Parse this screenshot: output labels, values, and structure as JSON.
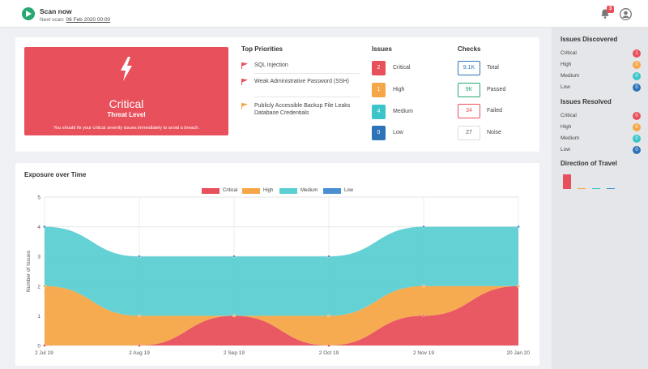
{
  "topbar": {
    "scan_title": "Scan now",
    "next_scan_label": "Next scan:",
    "next_scan_date": "06 Feb 2020 00:00",
    "notification_count": "3"
  },
  "threat": {
    "level": "Critical",
    "subtitle": "Threat Level",
    "message": "You should fix your critical severity issues immediately to avoid a breach.",
    "color": "#e8505b"
  },
  "priorities": {
    "title": "Top Priorities",
    "items": [
      {
        "text": "SQL Injection",
        "color": "#e8505b"
      },
      {
        "text": "Weak Administrative Password (SSH)",
        "color": "#e8505b"
      },
      {
        "text": "Publicly Accessible Backup File Leaks Database Credentials",
        "color": "#f5a748"
      }
    ]
  },
  "issues": {
    "title": "Issues",
    "items": [
      {
        "count": "2",
        "label": "Critical",
        "color": "#e8505b"
      },
      {
        "count": "1",
        "label": "High",
        "color": "#f5a748"
      },
      {
        "count": "4",
        "label": "Medium",
        "color": "#3cc5c9"
      },
      {
        "count": "0",
        "label": "Low",
        "color": "#2d73b8"
      }
    ]
  },
  "checks": {
    "title": "Checks",
    "items": [
      {
        "value": "9.1K",
        "label": "Total",
        "color": "#2d73b8"
      },
      {
        "value": "9K",
        "label": "Passed",
        "color": "#27a872"
      },
      {
        "value": "34",
        "label": "Failed",
        "color": "#e8505b"
      },
      {
        "value": "27",
        "label": "Noise",
        "color": "#555555"
      }
    ]
  },
  "chart_data": {
    "type": "area",
    "title": "Exposure over Time",
    "xlabel": "",
    "ylabel": "Number of Issues",
    "x": [
      "2 Jul 19",
      "2 Aug 19",
      "2 Sep 19",
      "2 Oct 19",
      "2 Nov 19",
      "20 Jan 20"
    ],
    "ylim": [
      0,
      5
    ],
    "yticks": [
      "0",
      "1",
      "2",
      "3",
      "4",
      "5"
    ],
    "stacked": true,
    "grid": true,
    "legend_position": "top",
    "series": [
      {
        "name": "Critical",
        "color": "#e8505b",
        "values": [
          0,
          0,
          1,
          0,
          1,
          2
        ]
      },
      {
        "name": "High",
        "color": "#f5a748",
        "values": [
          2,
          1,
          0,
          1,
          1,
          0
        ]
      },
      {
        "name": "Medium",
        "color": "#5ccfd2",
        "values": [
          2,
          2,
          2,
          2,
          2,
          2
        ]
      },
      {
        "name": "Low",
        "color": "#4a90d0",
        "values": [
          0,
          0,
          0,
          0,
          0,
          0
        ]
      }
    ]
  },
  "sidebar": {
    "discovered_title": "Issues Discovered",
    "discovered": [
      {
        "label": "Critical",
        "count": "1",
        "color": "#e8505b"
      },
      {
        "label": "High",
        "count": "0",
        "color": "#f5a748"
      },
      {
        "label": "Medium",
        "count": "0",
        "color": "#3cc5c9"
      },
      {
        "label": "Low",
        "count": "0",
        "color": "#2d73b8"
      }
    ],
    "resolved_title": "Issues Resolved",
    "resolved": [
      {
        "label": "Critical",
        "count": "0",
        "color": "#e8505b"
      },
      {
        "label": "High",
        "count": "0",
        "color": "#f5a748"
      },
      {
        "label": "Medium",
        "count": "0",
        "color": "#3cc5c9"
      },
      {
        "label": "Low",
        "count": "0",
        "color": "#2d73b8"
      }
    ],
    "direction_title": "Direction of Travel",
    "direction": [
      {
        "name": "Critical",
        "value": 1,
        "color": "#e8505b"
      },
      {
        "name": "High",
        "value": 0,
        "color": "#f5a748"
      },
      {
        "name": "Medium",
        "value": 0,
        "color": "#3cc5c9"
      },
      {
        "name": "Low",
        "value": 0,
        "color": "#4a90d0"
      }
    ]
  }
}
